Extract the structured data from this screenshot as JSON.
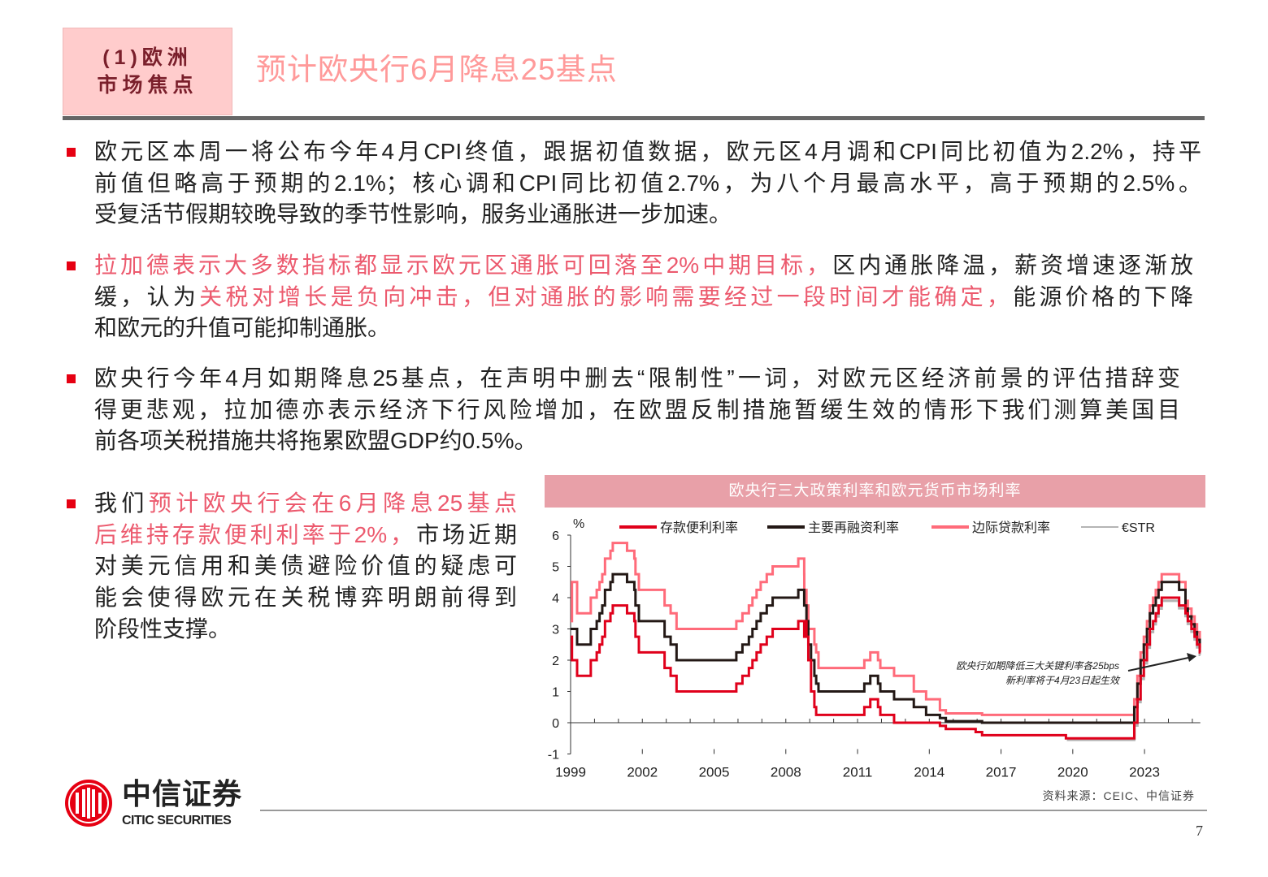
{
  "header": {
    "section_line1": "(1)欧洲",
    "section_line2": "市场焦点",
    "title": "预计欧央行6月降息25基点"
  },
  "bullets": [
    {
      "lines": [
        [
          {
            "text": "欧元区本周一将公布今年4月CPI终值，跟据初值数据，欧元区4月调和CPI同比初值为2.2%，持平",
            "hl": false
          }
        ],
        [
          {
            "text": "前值但略高于预期的2.1%；核心调和CPI同比初值2.7%，为八个月最高水平，高于预期的2.5%。",
            "hl": false
          }
        ],
        [
          {
            "text": "受复活节假期较晚导致的季节性影响，服务业通胀进一步加速。",
            "hl": false
          }
        ]
      ]
    },
    {
      "lines": [
        [
          {
            "text": "拉加德表示大多数指标都显示欧元区通胀可回落至2%中期目标，",
            "hl": true
          },
          {
            "text": "区内通胀降温，薪资增速逐渐放",
            "hl": false
          }
        ],
        [
          {
            "text": "缓，认为",
            "hl": false
          },
          {
            "text": "关税对增长是负向冲击，但对通胀的影响需要经过一段时间才能确定，",
            "hl": true
          },
          {
            "text": "能源价格的下降",
            "hl": false
          }
        ],
        [
          {
            "text": "和欧元的升值可能抑制通胀。",
            "hl": false
          }
        ]
      ]
    },
    {
      "lines": [
        [
          {
            "text": "欧央行今年4月如期降息25基点，在声明中删去“限制性”一词，对欧元区经济前景的评估措辞变",
            "hl": false
          }
        ],
        [
          {
            "text": "得更悲观，拉加德亦表示经济下行风险增加，在欧盟反制措施暂缓生效的情形下我们测算美国目",
            "hl": false
          }
        ],
        [
          {
            "text": "前各项关税措施共将拖累欧盟GDP约0.5%。",
            "hl": false
          }
        ]
      ]
    },
    {
      "lines": [
        [
          {
            "text": "我们",
            "hl": false
          },
          {
            "text": "预计欧央行会在6月降息25基点",
            "hl": true
          }
        ],
        [
          {
            "text": "后维持存款便利利率于2%，",
            "hl": true
          },
          {
            "text": "市场近期",
            "hl": false
          }
        ],
        [
          {
            "text": "对美元信用和美债避险价值的疑虑可",
            "hl": false
          }
        ],
        [
          {
            "text": "能会使得欧元在关税博弈明朗前得到",
            "hl": false
          }
        ],
        [
          {
            "text": "阶段性支撑。",
            "hl": false
          }
        ]
      ]
    }
  ],
  "chart_data": {
    "type": "line",
    "step": true,
    "title": "欧央行三大政策利率和欧元货币市场利率",
    "ylabel": "%",
    "ylim": [
      -1,
      6
    ],
    "yticks": [
      "-1",
      "0",
      "1",
      "2",
      "3",
      "4",
      "5",
      "6"
    ],
    "xlim": [
      "1999-01",
      "2025-05"
    ],
    "xticks": [
      "1999",
      "2002",
      "2005",
      "2008",
      "2011",
      "2014",
      "2017",
      "2020",
      "2023"
    ],
    "legend_position": "top",
    "grid": false,
    "series": [
      {
        "name": "存款便利利率",
        "color": "#e0001b",
        "key": "deposit"
      },
      {
        "name": "主要再融资利率",
        "color": "#231815",
        "key": "mro"
      },
      {
        "name": "边际贷款利率",
        "color": "#ff6b7a",
        "key": "mlf"
      },
      {
        "name": "€STR",
        "color": "#b4b4b4",
        "key": "estr"
      }
    ],
    "policy_rates": {
      "columns": [
        "date",
        "deposit",
        "mro",
        "mlf"
      ],
      "rows": [
        [
          "1999-01-01",
          2.75,
          3.0,
          3.25
        ],
        [
          "1999-01-22",
          2.0,
          3.0,
          4.5
        ],
        [
          "1999-04-09",
          1.5,
          2.5,
          3.5
        ],
        [
          "1999-11-05",
          2.0,
          3.0,
          4.0
        ],
        [
          "2000-02-04",
          2.25,
          3.25,
          4.25
        ],
        [
          "2000-03-17",
          2.5,
          3.5,
          4.5
        ],
        [
          "2000-04-28",
          2.75,
          3.75,
          4.75
        ],
        [
          "2000-06-09",
          3.25,
          4.25,
          5.25
        ],
        [
          "2000-09-01",
          3.5,
          4.5,
          5.5
        ],
        [
          "2000-10-06",
          3.75,
          4.75,
          5.75
        ],
        [
          "2001-05-11",
          3.5,
          4.5,
          5.5
        ],
        [
          "2001-08-31",
          3.25,
          4.25,
          5.25
        ],
        [
          "2001-09-18",
          2.75,
          3.75,
          4.75
        ],
        [
          "2001-11-09",
          2.25,
          3.25,
          4.25
        ],
        [
          "2002-12-06",
          1.75,
          2.75,
          3.75
        ],
        [
          "2003-03-07",
          1.5,
          2.5,
          3.5
        ],
        [
          "2003-06-06",
          1.0,
          2.0,
          3.0
        ],
        [
          "2005-12-06",
          1.25,
          2.25,
          3.25
        ],
        [
          "2006-03-08",
          1.5,
          2.5,
          3.5
        ],
        [
          "2006-06-15",
          1.75,
          2.75,
          3.75
        ],
        [
          "2006-08-09",
          2.0,
          3.0,
          4.0
        ],
        [
          "2006-10-11",
          2.25,
          3.25,
          4.25
        ],
        [
          "2006-12-13",
          2.5,
          3.5,
          4.5
        ],
        [
          "2007-03-14",
          2.75,
          3.75,
          4.75
        ],
        [
          "2007-06-13",
          3.0,
          4.0,
          5.0
        ],
        [
          "2008-07-09",
          3.25,
          4.25,
          5.25
        ],
        [
          "2008-10-08",
          2.75,
          3.75,
          4.75
        ],
        [
          "2008-10-09",
          3.25,
          3.75,
          4.25
        ],
        [
          "2008-11-12",
          2.75,
          3.25,
          3.75
        ],
        [
          "2008-12-10",
          2.0,
          2.5,
          3.0
        ],
        [
          "2009-01-21",
          1.0,
          2.0,
          3.0
        ],
        [
          "2009-03-11",
          0.5,
          1.5,
          2.5
        ],
        [
          "2009-04-08",
          0.25,
          1.25,
          2.25
        ],
        [
          "2009-05-13",
          0.25,
          1.0,
          1.75
        ],
        [
          "2011-04-13",
          0.5,
          1.25,
          2.0
        ],
        [
          "2011-07-13",
          0.75,
          1.5,
          2.25
        ],
        [
          "2011-11-09",
          0.5,
          1.25,
          2.0
        ],
        [
          "2011-12-14",
          0.25,
          1.0,
          1.75
        ],
        [
          "2012-07-11",
          0.0,
          0.75,
          1.5
        ],
        [
          "2013-05-08",
          0.0,
          0.5,
          1.0
        ],
        [
          "2013-11-13",
          0.0,
          0.25,
          0.75
        ],
        [
          "2014-06-11",
          -0.1,
          0.15,
          0.4
        ],
        [
          "2014-09-10",
          -0.2,
          0.05,
          0.3
        ],
        [
          "2015-12-09",
          -0.3,
          0.05,
          0.3
        ],
        [
          "2016-03-16",
          -0.4,
          0.0,
          0.25
        ],
        [
          "2019-09-18",
          -0.5,
          0.0,
          0.25
        ],
        [
          "2022-07-27",
          0.0,
          0.5,
          0.75
        ],
        [
          "2022-09-14",
          0.75,
          1.25,
          1.5
        ],
        [
          "2022-11-02",
          1.5,
          2.0,
          2.25
        ],
        [
          "2022-12-21",
          2.0,
          2.5,
          2.75
        ],
        [
          "2023-02-08",
          2.5,
          3.0,
          3.25
        ],
        [
          "2023-03-22",
          3.0,
          3.5,
          3.75
        ],
        [
          "2023-05-10",
          3.25,
          3.75,
          4.0
        ],
        [
          "2023-06-21",
          3.5,
          4.0,
          4.25
        ],
        [
          "2023-08-02",
          3.75,
          4.25,
          4.5
        ],
        [
          "2023-09-20",
          4.0,
          4.5,
          4.75
        ],
        [
          "2024-06-12",
          3.75,
          4.25,
          4.5
        ],
        [
          "2024-09-18",
          3.5,
          3.65,
          3.9
        ],
        [
          "2024-10-23",
          3.25,
          3.4,
          3.65
        ],
        [
          "2024-12-18",
          3.0,
          3.15,
          3.4
        ],
        [
          "2025-02-05",
          2.75,
          2.9,
          3.15
        ],
        [
          "2025-03-12",
          2.5,
          2.65,
          2.9
        ],
        [
          "2025-04-23",
          2.25,
          2.4,
          2.65
        ]
      ]
    },
    "estr": {
      "columns": [
        "date",
        "value"
      ],
      "rows": [
        [
          "2019-10-02",
          -0.55
        ],
        [
          "2022-07-27",
          -0.51
        ],
        [
          "2022-08-01",
          -0.09
        ],
        [
          "2022-09-14",
          0.66
        ],
        [
          "2022-11-02",
          1.4
        ],
        [
          "2022-12-21",
          1.9
        ],
        [
          "2023-02-08",
          2.4
        ],
        [
          "2023-03-22",
          2.9
        ],
        [
          "2023-05-10",
          3.15
        ],
        [
          "2023-06-21",
          3.4
        ],
        [
          "2023-08-02",
          3.65
        ],
        [
          "2023-09-20",
          3.9
        ],
        [
          "2024-06-12",
          3.66
        ],
        [
          "2024-09-18",
          3.41
        ],
        [
          "2024-10-23",
          3.16
        ],
        [
          "2024-12-18",
          2.91
        ],
        [
          "2025-02-05",
          2.66
        ],
        [
          "2025-03-12",
          2.41
        ],
        [
          "2025-04-23",
          2.17
        ]
      ]
    },
    "annotation": {
      "line1": "欧央行如期降低三大关键利率各25bps",
      "line2": "新利率将于4月23日起生效"
    }
  },
  "source": "资料来源：CEIC、中信证券",
  "page_number": "7",
  "logo": {
    "cn": "中信证券",
    "en": "CITIC SECURITIES",
    "color": "#e60012"
  }
}
